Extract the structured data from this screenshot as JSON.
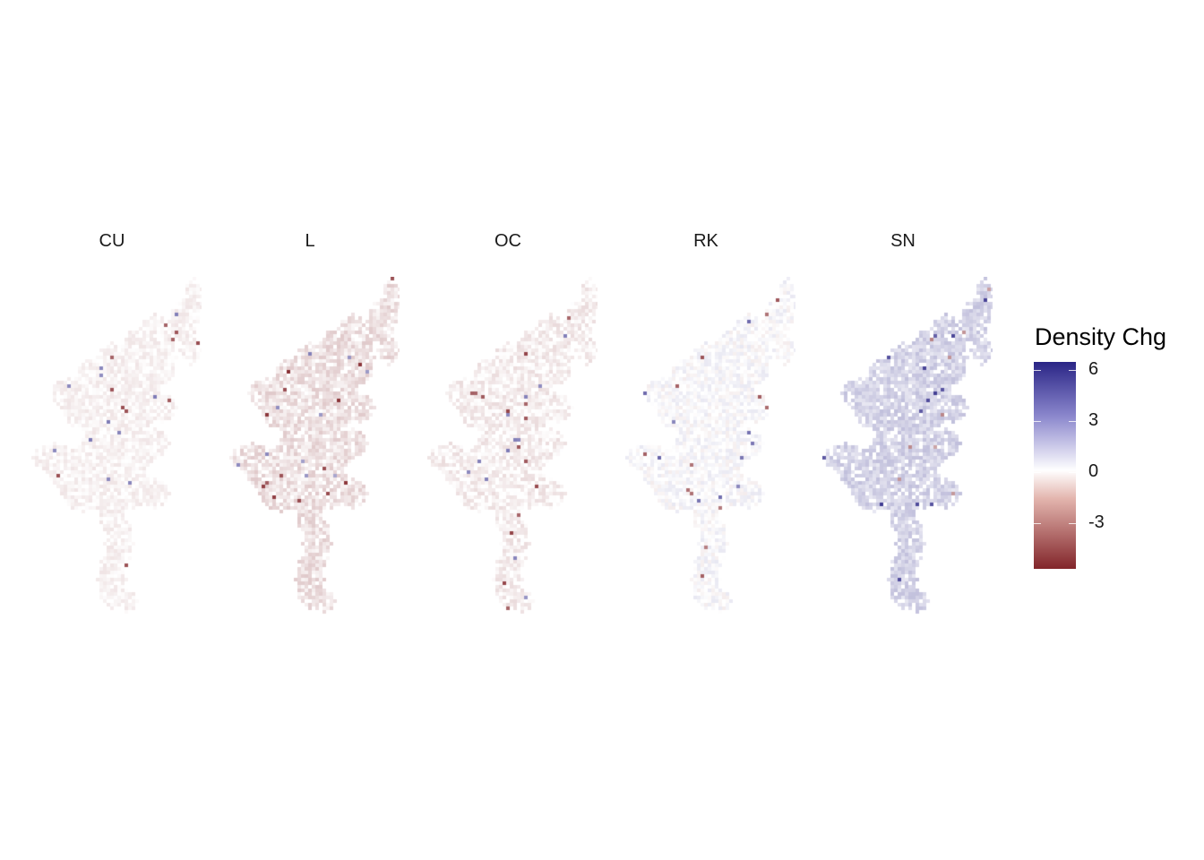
{
  "panels": [
    {
      "label": "CU"
    },
    {
      "label": "L"
    },
    {
      "label": "OC"
    },
    {
      "label": "RK"
    },
    {
      "label": "SN"
    }
  ],
  "legend": {
    "title": "Density Chg",
    "ticks": [
      {
        "value": 6,
        "label": "6"
      },
      {
        "value": 3,
        "label": "3"
      },
      {
        "value": 0,
        "label": "0"
      },
      {
        "value": -3,
        "label": "-3"
      }
    ],
    "range": [
      -5.7,
      6.5
    ],
    "colors": {
      "high": "#2a2586",
      "mid": "#ffffff",
      "low": "#82252a"
    }
  },
  "map_patterns": {
    "CU": {
      "mean": -0.35,
      "spread": 0.35
    },
    "L": {
      "mean": -0.8,
      "spread": 0.6
    },
    "OC": {
      "mean": -0.45,
      "spread": 0.5
    },
    "RK": {
      "mean": 0.1,
      "spread": 0.6
    },
    "SN": {
      "mean": 1.3,
      "spread": 0.6
    }
  }
}
